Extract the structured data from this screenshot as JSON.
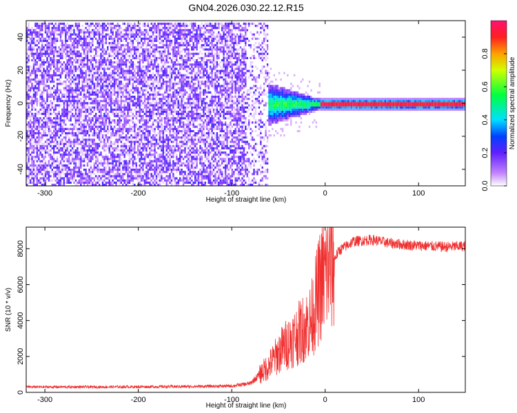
{
  "title": "GN04.2026.030.22.12.R15",
  "chart_data": [
    {
      "type": "heatmap",
      "xlabel": "Height of straight line (km)",
      "ylabel": "Frequency (Hz)",
      "xlim": [
        -320,
        150
      ],
      "ylim": [
        -50,
        50
      ],
      "xticks": [
        -300,
        -200,
        -100,
        0,
        100
      ],
      "yticks": [
        -40,
        -20,
        0,
        20,
        40
      ],
      "colorbar": {
        "label": "Normalized spectral amplitude",
        "range": [
          0,
          1
        ],
        "ticks": [
          0.0,
          0.2,
          0.4,
          0.6,
          0.8
        ]
      },
      "regions": [
        {
          "x_range": [
            -320,
            -62
          ],
          "y_range": [
            -50,
            50
          ],
          "amplitude": 0.12,
          "description": "diffuse noise"
        },
        {
          "x_range": [
            -62,
            -5
          ],
          "y_range": [
            -8,
            10
          ],
          "amplitude": 0.5,
          "description": "emerging carrier"
        },
        {
          "x_range": [
            0,
            150
          ],
          "y_range": [
            -1.5,
            1.5
          ],
          "amplitude": 0.9,
          "description": "carrier line near 0 Hz"
        }
      ]
    },
    {
      "type": "line",
      "xlabel": "Height of straight line (km)",
      "ylabel": "SNR (10 * v/v)",
      "xlim": [
        -320,
        150
      ],
      "ylim": [
        0,
        9200
      ],
      "xticks": [
        -300,
        -200,
        -100,
        0,
        100
      ],
      "yticks": [
        0,
        2000,
        4000,
        6000,
        8000
      ],
      "color": "#f03030",
      "series_envelope": [
        {
          "x": -320,
          "y": 300
        },
        {
          "x": -240,
          "y": 300
        },
        {
          "x": -160,
          "y": 320
        },
        {
          "x": -100,
          "y": 350
        },
        {
          "x": -80,
          "y": 500
        },
        {
          "x": -60,
          "y": 1500
        },
        {
          "x": -45,
          "y": 2500
        },
        {
          "x": -30,
          "y": 3200
        },
        {
          "x": -15,
          "y": 4000
        },
        {
          "x": -5,
          "y": 6000
        },
        {
          "x": 5,
          "y": 7000
        },
        {
          "x": 15,
          "y": 7900
        },
        {
          "x": 30,
          "y": 8400
        },
        {
          "x": 50,
          "y": 8500
        },
        {
          "x": 70,
          "y": 8300
        },
        {
          "x": 90,
          "y": 8200
        },
        {
          "x": 110,
          "y": 8150
        },
        {
          "x": 130,
          "y": 8100
        },
        {
          "x": 150,
          "y": 8150
        }
      ]
    }
  ]
}
